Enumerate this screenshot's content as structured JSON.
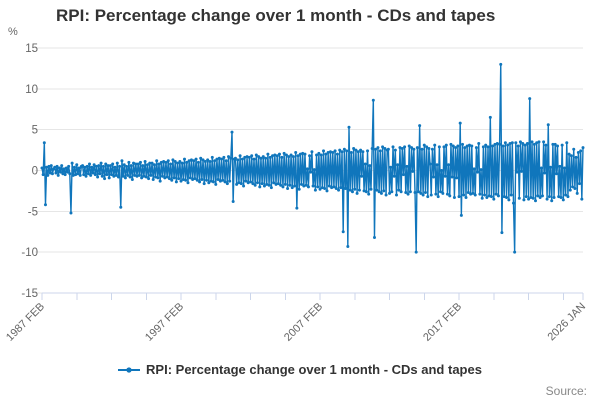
{
  "title": "RPI: Percentage change over 1 month - CDs and tapes",
  "y_axis": {
    "unit_label": "%",
    "ticks": [
      15,
      10,
      5,
      0,
      -5,
      -10,
      -15
    ],
    "min": -15,
    "max": 15
  },
  "x_axis": {
    "tick_interval_months": 30,
    "total_months": 467,
    "labels": [
      {
        "text": "1987 FEB",
        "month": 0
      },
      {
        "text": "1997 FEB",
        "month": 120
      },
      {
        "text": "2007 FEB",
        "month": 240
      },
      {
        "text": "2017 FEB",
        "month": 360
      },
      {
        "text": "2026 JAN",
        "month": 467
      }
    ]
  },
  "legend": {
    "label": "RPI: Percentage change over 1 month - CDs and tapes"
  },
  "source": {
    "label": "Source:"
  },
  "colors": {
    "line": "#1076BC",
    "grid": "#e6e6e6",
    "axis": "#ccd6eb",
    "tick_label": "#666666",
    "title": "#333333",
    "legend_text": "#333333",
    "source_text": "#888888"
  },
  "chart_data": {
    "type": "line",
    "title": "RPI: Percentage change over 1 month - CDs and tapes",
    "xlabel": "",
    "ylabel": "%",
    "ylim": [
      -15,
      15
    ],
    "x_start": "1987 FEB",
    "x_end": "2026 JAN",
    "frequency": "monthly",
    "legend_position": "bottom",
    "grid": true,
    "values": [
      0.3,
      -0.5,
      3.4,
      -4.2,
      0.4,
      -0.6,
      0.5,
      -0.3,
      0.6,
      -0.4,
      0.2,
      0.4,
      -0.3,
      0.5,
      -0.6,
      0.3,
      -0.2,
      0.6,
      -0.4,
      0.2,
      -0.5,
      0.3,
      -0.2,
      0.5,
      -0.4,
      -5.2,
      0.9,
      -0.6,
      0.4,
      -0.5,
      0.7,
      -0.4,
      0.3,
      -0.6,
      0.5,
      0.6,
      -0.5,
      0.4,
      -0.7,
      0.5,
      -0.4,
      0.8,
      -0.6,
      0.4,
      -0.3,
      0.7,
      -0.5,
      0.5,
      -0.8,
      0.6,
      -0.4,
      0.9,
      -0.7,
      0.5,
      -1.0,
      0.8,
      -0.5,
      0.6,
      -0.9,
      0.6,
      -0.5,
      0.8,
      -0.7,
      0.4,
      -0.6,
      0.9,
      -0.8,
      0.5,
      -4.5,
      1.2,
      -0.7,
      0.7,
      -0.9,
      0.5,
      -0.6,
      1.0,
      -0.8,
      0.6,
      -1.1,
      0.9,
      -0.6,
      0.8,
      -0.7,
      0.8,
      -0.6,
      1.0,
      -0.9,
      0.6,
      -0.7,
      1.1,
      -0.8,
      0.7,
      -1.0,
      0.9,
      -0.6,
      0.9,
      -1.1,
      0.7,
      -0.8,
      1.2,
      -0.9,
      0.8,
      -1.3,
      1.0,
      -0.7,
      1.1,
      -0.9,
      1.0,
      -0.8,
      1.2,
      -1.0,
      0.8,
      -1.2,
      1.3,
      -0.9,
      1.1,
      -1.4,
      0.9,
      -1.0,
      1.1,
      -1.3,
      0.9,
      -1.1,
      1.4,
      -1.2,
      1.0,
      -1.5,
      1.2,
      -0.9,
      1.3,
      -1.1,
      1.2,
      -1.0,
      1.4,
      -1.2,
      1.0,
      -1.4,
      1.5,
      -1.1,
      1.3,
      -1.6,
      1.1,
      -1.2,
      1.3,
      -1.5,
      1.1,
      -1.3,
      1.6,
      -1.4,
      1.2,
      -1.7,
      1.4,
      -1.1,
      1.5,
      -1.3,
      1.4,
      -1.2,
      1.6,
      -1.4,
      1.2,
      -1.6,
      1.7,
      -1.3,
      1.5,
      4.7,
      -3.8,
      1.4,
      1.5,
      -1.7,
      1.3,
      -1.5,
      1.8,
      -1.6,
      1.4,
      -1.9,
      1.6,
      -1.3,
      1.7,
      -1.5,
      1.6,
      -1.4,
      1.8,
      -1.6,
      1.4,
      -1.8,
      1.9,
      -1.5,
      1.7,
      -2.0,
      1.5,
      -1.6,
      1.7,
      -1.9,
      1.5,
      -1.7,
      2.0,
      -1.8,
      1.6,
      -2.1,
      1.8,
      -1.5,
      1.9,
      -1.7,
      1.8,
      -1.6,
      2.0,
      -1.8,
      1.6,
      -2.0,
      2.1,
      -1.7,
      1.9,
      -2.2,
      1.7,
      -1.8,
      1.9,
      -2.1,
      1.7,
      -1.9,
      2.2,
      -4.6,
      1.8,
      -2.3,
      2.0,
      -1.7,
      2.1,
      -1.9,
      2.0,
      -1.8,
      0.2,
      -2.0,
      1.8,
      -0.2,
      2.3,
      -1.9,
      0.1,
      -2.4,
      1.9,
      -2.0,
      2.1,
      -2.3,
      1.9,
      -2.1,
      2.4,
      -2.2,
      2.0,
      -2.5,
      2.2,
      -1.9,
      2.3,
      -2.1,
      2.2,
      -2.0,
      2.4,
      -2.2,
      2.0,
      -2.4,
      2.5,
      -2.1,
      2.3,
      -7.5,
      2.6,
      -2.2,
      2.4,
      -9.3,
      5.3,
      -2.4,
      2.2,
      -2.6,
      2.7,
      -2.3,
      2.5,
      -2.8,
      2.3,
      -2.4,
      2.5,
      -0.7,
      2.3,
      -2.5,
      0.8,
      -2.6,
      2.4,
      -2.9,
      0.6,
      -2.3,
      2.7,
      8.6,
      -8.2,
      2.6,
      -2.4,
      2.8,
      -2.6,
      2.4,
      -2.8,
      2.9,
      -2.5,
      2.7,
      -3.0,
      2.5,
      2.6,
      -2.8,
      0.4,
      -2.6,
      2.9,
      -0.7,
      2.5,
      -3.0,
      0.7,
      -2.4,
      2.8,
      -2.6,
      2.7,
      -0.5,
      2.9,
      -2.7,
      0.5,
      -2.9,
      3.0,
      -2.6,
      2.8,
      -0.1,
      2.6,
      -2.7,
      -10.0,
      2.8,
      -2.6,
      5.5,
      -2.8,
      2.6,
      -3.0,
      3.1,
      -2.7,
      2.9,
      -3.2,
      2.7,
      0.8,
      -3.0,
      2.6,
      -0.8,
      3.1,
      -2.9,
      0.7,
      -3.2,
      2.9,
      -2.6,
      0.0,
      -2.8,
      2.9,
      -0.7,
      3.1,
      -2.9,
      0.7,
      -3.1,
      3.2,
      -0.8,
      3.0,
      -3.3,
      2.8,
      -0.9,
      3.0,
      -3.2,
      5.8,
      -5.5,
      3.2,
      -3.0,
      2.8,
      -3.3,
      3.0,
      -2.7,
      3.1,
      -2.9,
      3.0,
      -2.8,
      0.2,
      -3.0,
      2.8,
      -0.2,
      3.3,
      -2.9,
      0.1,
      -3.4,
      2.9,
      -3.0,
      3.1,
      -3.3,
      2.9,
      -3.1,
      6.5,
      -3.2,
      3.0,
      -3.5,
      3.2,
      -2.9,
      3.3,
      -3.1,
      3.2,
      13.0,
      -7.6,
      3.0,
      -3.2,
      3.4,
      -3.3,
      3.1,
      -3.6,
      3.3,
      -3.0,
      3.4,
      -4.0,
      -10.0,
      3.4,
      -0.2,
      3.0,
      -3.4,
      3.5,
      -0.1,
      3.3,
      -3.6,
      3.1,
      -3.2,
      3.3,
      -3.5,
      8.8,
      -3.3,
      3.5,
      -3.4,
      3.2,
      -3.7,
      3.4,
      -3.1,
      3.5,
      -3.3,
      0.3,
      -3.1,
      3.5,
      -0.3,
      3.1,
      -3.5,
      5.6,
      -3.2,
      0.4,
      -3.7,
      3.2,
      -3.3,
      3.2,
      -0.4,
      3.0,
      -3.2,
      0.5,
      -3.3,
      3.1,
      -3.6,
      0.3,
      -3.0,
      3.4,
      -3.2,
      2.0,
      -2.4,
      1.8,
      -2.0,
      2.6,
      -2.2,
      1.6,
      -2.8,
      2.2,
      -1.6,
      2.4,
      -3.5,
      2.8
    ]
  }
}
